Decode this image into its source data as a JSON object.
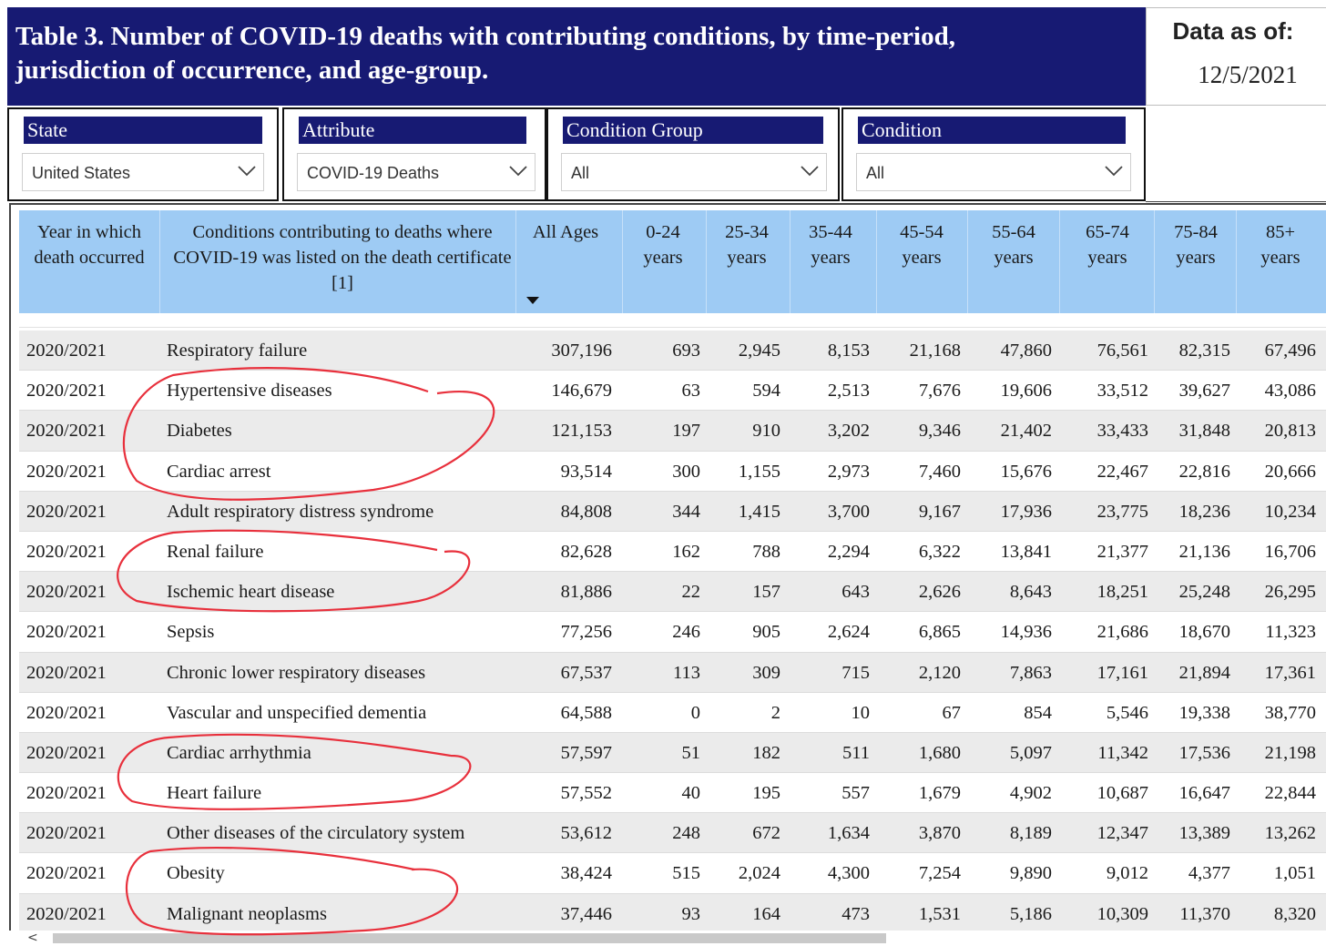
{
  "title": "Table 3. Number of COVID-19 deaths with contributing conditions, by time-period, jurisdiction of occurrence, and age-group.",
  "data_as_of": {
    "label": "Data as of:",
    "date": "12/5/2021"
  },
  "slicers": [
    {
      "label": "State",
      "value": "United States"
    },
    {
      "label": "Attribute",
      "value": "COVID-19 Deaths"
    },
    {
      "label": "Condition Group",
      "value": "All"
    },
    {
      "label": "Condition",
      "value": "All"
    }
  ],
  "table": {
    "headers": [
      "Year in which death occurred",
      "Conditions contributing to deaths where COVID-19 was listed on the death certificate [1]",
      "All Ages",
      "0-24 years",
      "25-34 years",
      "35-44 years",
      "45-54 years",
      "55-64 years",
      "65-74 years",
      "75-84 years",
      "85+ years"
    ],
    "sorted_column": "All Ages",
    "rows": [
      [
        "2020/2021",
        "Respiratory failure",
        "307,196",
        "693",
        "2,945",
        "8,153",
        "21,168",
        "47,860",
        "76,561",
        "82,315",
        "67,496"
      ],
      [
        "2020/2021",
        "Hypertensive diseases",
        "146,679",
        "63",
        "594",
        "2,513",
        "7,676",
        "19,606",
        "33,512",
        "39,627",
        "43,086"
      ],
      [
        "2020/2021",
        "Diabetes",
        "121,153",
        "197",
        "910",
        "3,202",
        "9,346",
        "21,402",
        "33,433",
        "31,848",
        "20,813"
      ],
      [
        "2020/2021",
        "Cardiac arrest",
        "93,514",
        "300",
        "1,155",
        "2,973",
        "7,460",
        "15,676",
        "22,467",
        "22,816",
        "20,666"
      ],
      [
        "2020/2021",
        "Adult respiratory distress syndrome",
        "84,808",
        "344",
        "1,415",
        "3,700",
        "9,167",
        "17,936",
        "23,775",
        "18,236",
        "10,234"
      ],
      [
        "2020/2021",
        "Renal failure",
        "82,628",
        "162",
        "788",
        "2,294",
        "6,322",
        "13,841",
        "21,377",
        "21,136",
        "16,706"
      ],
      [
        "2020/2021",
        "Ischemic heart disease",
        "81,886",
        "22",
        "157",
        "643",
        "2,626",
        "8,643",
        "18,251",
        "25,248",
        "26,295"
      ],
      [
        "2020/2021",
        "Sepsis",
        "77,256",
        "246",
        "905",
        "2,624",
        "6,865",
        "14,936",
        "21,686",
        "18,670",
        "11,323"
      ],
      [
        "2020/2021",
        "Chronic lower respiratory diseases",
        "67,537",
        "113",
        "309",
        "715",
        "2,120",
        "7,863",
        "17,161",
        "21,894",
        "17,361"
      ],
      [
        "2020/2021",
        "Vascular and unspecified dementia",
        "64,588",
        "0",
        "2",
        "10",
        "67",
        "854",
        "5,546",
        "19,338",
        "38,770"
      ],
      [
        "2020/2021",
        "Cardiac arrhythmia",
        "57,597",
        "51",
        "182",
        "511",
        "1,680",
        "5,097",
        "11,342",
        "17,536",
        "21,198"
      ],
      [
        "2020/2021",
        "Heart failure",
        "57,552",
        "40",
        "195",
        "557",
        "1,679",
        "4,902",
        "10,687",
        "16,647",
        "22,844"
      ],
      [
        "2020/2021",
        "Other diseases of the circulatory system",
        "53,612",
        "248",
        "672",
        "1,634",
        "3,870",
        "8,189",
        "12,347",
        "13,389",
        "13,262"
      ],
      [
        "2020/2021",
        "Obesity",
        "38,424",
        "515",
        "2,024",
        "4,300",
        "7,254",
        "9,890",
        "9,012",
        "4,377",
        "1,051"
      ],
      [
        "2020/2021",
        "Malignant neoplasms",
        "37,446",
        "93",
        "164",
        "473",
        "1,531",
        "5,186",
        "10,309",
        "11,370",
        "8,320"
      ]
    ]
  },
  "colors": {
    "title_bg": "#171a73",
    "header_bg": "#9ecbf4",
    "row_shade": "#ebebeb",
    "annotation": "#e8303c"
  },
  "icons": {
    "dropdown": "chevron-down-icon",
    "sort": "sort-descending-icon",
    "scroll_left": "scroll-left-arrow-icon"
  }
}
